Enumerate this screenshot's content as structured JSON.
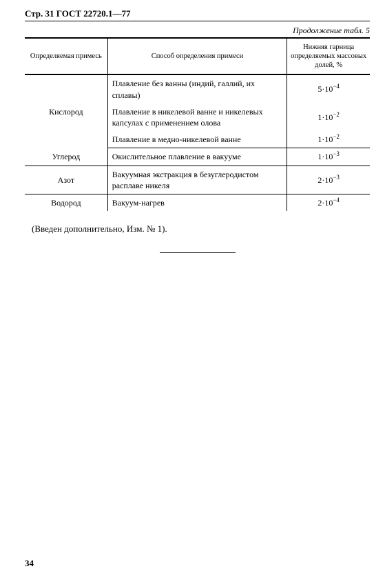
{
  "header": "Стр. 31 ГОСТ 22720.1—77",
  "continuation": "Продолжение табл. 5",
  "columns": {
    "impurity": "Определяемая примесь",
    "method": "Способ определения примеси",
    "limit": "Нижняя гарница определяемых массовых долей, %"
  },
  "rows": [
    {
      "impurity": "Кислород",
      "methods": [
        {
          "text": "Плавление без ванны (индий, галлий, их сплавы)",
          "limit_base": "5·10",
          "limit_exp": "−4"
        },
        {
          "text": "Плавление в никелевой ванне и никелевых капсулах с применением олова",
          "limit_base": "1·10",
          "limit_exp": "−2"
        },
        {
          "text": "Плавление в медно-никелевой ванне",
          "limit_base": "1·10",
          "limit_exp": "−2"
        }
      ]
    },
    {
      "impurity": "Углерод",
      "methods": [
        {
          "text": "Окислительное плавление в вакууме",
          "limit_base": "1·10",
          "limit_exp": "−3"
        }
      ]
    },
    {
      "impurity": "Азот",
      "methods": [
        {
          "text": "Вакуумная экстракция в безуглеродистом расплаве никеля",
          "limit_base": "2·10",
          "limit_exp": "−3"
        }
      ]
    },
    {
      "impurity": "Водород",
      "methods": [
        {
          "text": "Вакуум-нагрев",
          "limit_base": "2·10",
          "limit_exp": "−4"
        }
      ]
    }
  ],
  "note": "(Введен дополнительно, Изм. № 1).",
  "page_number": "34"
}
